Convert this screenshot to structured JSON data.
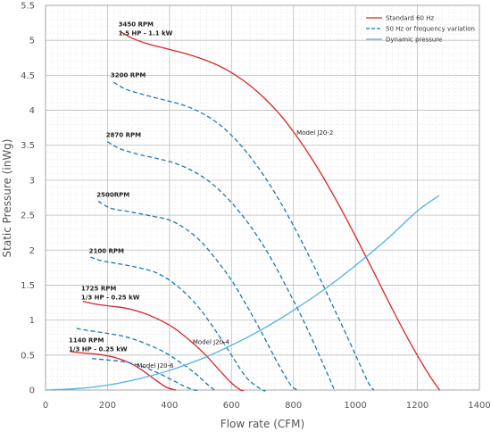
{
  "chart_data": {
    "type": "line",
    "xlabel": "Flow rate (CFM)",
    "ylabel": "Static Pressure (inWg)",
    "xlim": [
      0,
      1400
    ],
    "ylim": [
      0,
      5.5
    ],
    "xticks": [
      "0",
      "200",
      "400",
      "600",
      "800",
      "1000",
      "1200",
      "1400"
    ],
    "yticks": [
      "0",
      "0.5",
      "1",
      "1.5",
      "2",
      "2.5",
      "3",
      "3.5",
      "4",
      "4.5",
      "5",
      "5.5"
    ],
    "grid": true,
    "legend_position": "top-right",
    "legend": [
      {
        "label": "Standard 60 Hz",
        "color": "#d62728",
        "style": "solid"
      },
      {
        "label": "50 Hz or frequency variation",
        "color": "#1f77b4",
        "style": "dashed"
      },
      {
        "label": "Dynamic pressure",
        "color": "#4fb3e0",
        "style": "solid"
      }
    ],
    "series": [
      {
        "label_line1": "3450 RPM",
        "label_line2": "1.5 HP - 1.1 kW",
        "color": "#d62728",
        "style": "solid",
        "x": [
          240,
          280,
          330,
          400,
          460,
          520,
          580,
          640,
          700,
          760,
          820,
          880,
          940,
          1000,
          1060,
          1120,
          1180,
          1240,
          1272
        ],
        "y": [
          5.13,
          5.03,
          4.95,
          4.87,
          4.8,
          4.71,
          4.59,
          4.42,
          4.2,
          3.92,
          3.57,
          3.16,
          2.7,
          2.2,
          1.68,
          1.15,
          0.65,
          0.2,
          0.0
        ]
      },
      {
        "label_line1": "3200 RPM",
        "color": "#1f77b4",
        "style": "dashed",
        "x": [
          220,
          260,
          320,
          380,
          440,
          500,
          560,
          620,
          680,
          740,
          800,
          860,
          920,
          980,
          1040,
          1060
        ],
        "y": [
          4.4,
          4.3,
          4.22,
          4.15,
          4.08,
          3.97,
          3.8,
          3.55,
          3.22,
          2.82,
          2.35,
          1.83,
          1.27,
          0.7,
          0.12,
          0.0
        ]
      },
      {
        "label_line1": "2870 RPM",
        "color": "#1f77b4",
        "style": "dashed",
        "x": [
          200,
          240,
          300,
          360,
          420,
          480,
          540,
          600,
          660,
          720,
          780,
          840,
          900,
          932
        ],
        "y": [
          3.55,
          3.45,
          3.37,
          3.31,
          3.24,
          3.12,
          2.94,
          2.68,
          2.35,
          1.94,
          1.45,
          0.92,
          0.33,
          0.0
        ]
      },
      {
        "label_line1": "2500RPM",
        "color": "#1f77b4",
        "style": "dashed",
        "x": [
          170,
          210,
          270,
          340,
          400,
          450,
          500,
          550,
          600,
          650,
          700,
          750,
          790,
          812
        ],
        "y": [
          2.7,
          2.6,
          2.55,
          2.49,
          2.43,
          2.31,
          2.13,
          1.87,
          1.57,
          1.2,
          0.8,
          0.38,
          0.08,
          0.0
        ]
      },
      {
        "label_line1": "2100 RPM",
        "color": "#1f77b4",
        "style": "dashed",
        "x": [
          145,
          180,
          230,
          290,
          350,
          400,
          450,
          500,
          550,
          600,
          650,
          700,
          710
        ],
        "y": [
          1.9,
          1.85,
          1.81,
          1.76,
          1.69,
          1.57,
          1.39,
          1.15,
          0.84,
          0.5,
          0.17,
          0.0,
          0.0
        ]
      },
      {
        "label_line1": "1725 RPM",
        "label_line2": "1/3 HP - 0.25 kW",
        "color": "#d62728",
        "style": "solid",
        "x": [
          120,
          160,
          210,
          260,
          310,
          360,
          410,
          460,
          510,
          560,
          600,
          630,
          640
        ],
        "y": [
          1.27,
          1.23,
          1.2,
          1.17,
          1.11,
          1.02,
          0.9,
          0.73,
          0.53,
          0.29,
          0.1,
          0.0,
          0.0
        ]
      },
      {
        "label_line1": "1140 RPM",
        "label_line2": "1/3 HP - 0.25 kW",
        "color": "#d62728",
        "style": "solid",
        "x": [
          80,
          120,
          170,
          220,
          270,
          310,
          350,
          390,
          420
        ],
        "y": [
          0.55,
          0.53,
          0.51,
          0.47,
          0.39,
          0.29,
          0.16,
          0.04,
          0.0
        ]
      },
      {
        "label_line1": "",
        "color": "#1f77b4",
        "style": "dashed",
        "x": [
          100,
          140,
          200,
          260,
          320,
          380,
          430,
          480,
          520,
          545
        ],
        "y": [
          0.88,
          0.85,
          0.81,
          0.76,
          0.67,
          0.55,
          0.41,
          0.25,
          0.09,
          0.0
        ]
      },
      {
        "label_line1": "",
        "color": "#1f77b4",
        "style": "dashed",
        "x": [
          150,
          200,
          260,
          310,
          360,
          410,
          450,
          480,
          490
        ],
        "y": [
          0.45,
          0.43,
          0.4,
          0.34,
          0.25,
          0.14,
          0.05,
          0.0,
          0.0
        ]
      },
      {
        "label_line1": "",
        "color": "#4fb3e0",
        "style": "solid",
        "x": [
          0,
          100,
          200,
          300,
          400,
          500,
          600,
          700,
          800,
          900,
          1000,
          1100,
          1200,
          1270
        ],
        "y": [
          0.0,
          0.02,
          0.07,
          0.16,
          0.28,
          0.44,
          0.64,
          0.87,
          1.14,
          1.44,
          1.78,
          2.15,
          2.56,
          2.78
        ]
      }
    ],
    "annotations": [
      {
        "text": "Model J20-2",
        "x": 810,
        "y": 3.65
      },
      {
        "text": "Model J20-4",
        "x": 475,
        "y": 0.66
      },
      {
        "text": "Model J20-6",
        "x": 295,
        "y": 0.32
      }
    ],
    "rpm_label_anchors": [
      {
        "x": 235,
        "y": 5.2
      },
      {
        "x": 210,
        "y": 4.47
      },
      {
        "x": 195,
        "y": 3.62
      },
      {
        "x": 165,
        "y": 2.76
      },
      {
        "x": 140,
        "y": 1.96
      },
      {
        "x": 115,
        "y": 1.42
      },
      {
        "x": 75,
        "y": 0.68
      }
    ]
  }
}
